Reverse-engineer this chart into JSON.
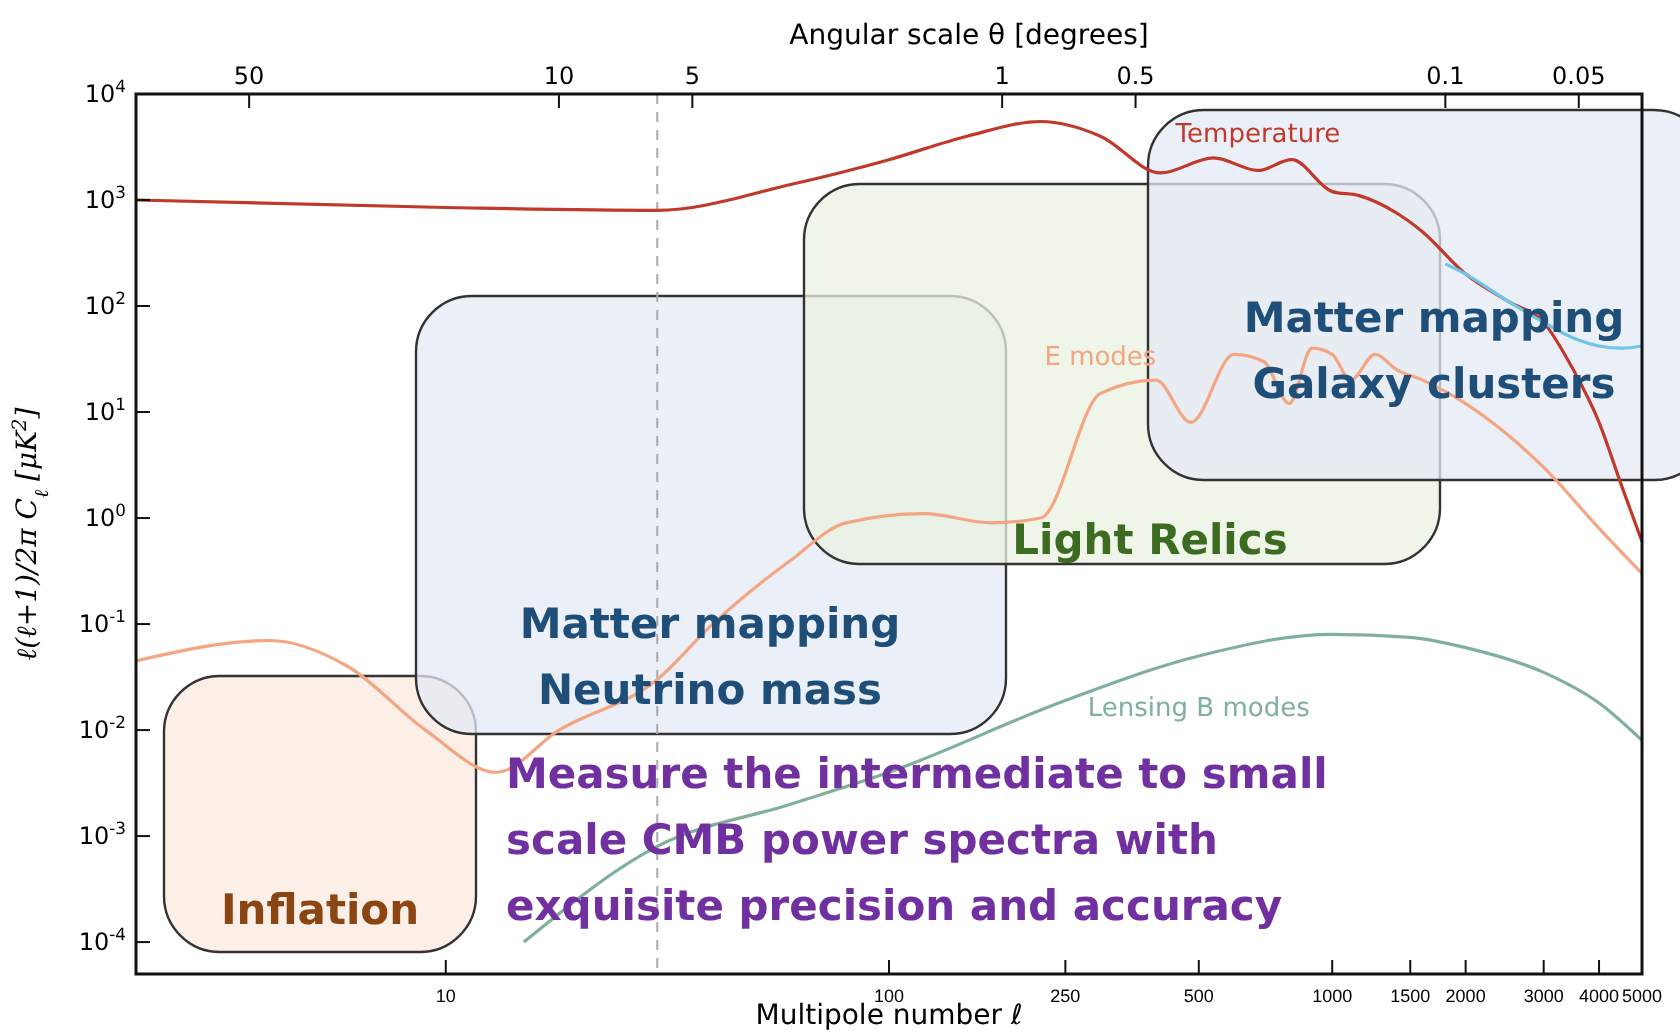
{
  "chart_data": {
    "type": "line",
    "xlabel": "Multipole number ℓ",
    "ylabel": "ℓ(ℓ+1)/2π C$_{ℓ}$ [μK$^{2}$]",
    "x2label": "Angular scale θ [degrees]",
    "xlim": [
      2,
      5000
    ],
    "xticks": [
      10,
      100,
      250,
      500,
      1000,
      1500,
      2000,
      3000,
      4000,
      5000
    ],
    "ylim": [
      5e-05,
      10000
    ],
    "log": "xy",
    "yticks": [
      {
        "value": 0.0001,
        "label": "10$^{-4}$"
      },
      {
        "value": 0.001,
        "label": "10$^{-3}$"
      },
      {
        "value": 0.01,
        "label": "10$^{-2}$"
      },
      {
        "value": 0.1,
        "label": "10$^{-1}$"
      },
      {
        "value": 1,
        "label": "10$^{0}$"
      },
      {
        "value": 10,
        "label": "10$^{1}$"
      },
      {
        "value": 100,
        "label": "10$^{2}$"
      },
      {
        "value": 1000,
        "label": "10$^{3}$"
      },
      {
        "value": 10000,
        "label": "10$^{4}$"
      }
    ],
    "series": [
      {
        "name": "Temperature",
        "color": "#c0392b",
        "x": [
          2,
          10,
          30,
          60,
          100,
          150,
          220,
          300,
          410,
          540,
          680,
          810,
          1000,
          1150,
          1400,
          1600,
          2000,
          2500,
          3000,
          3500,
          4000,
          4500,
          5000
        ],
        "values": [
          1000,
          850,
          800,
          1400,
          2400,
          4000,
          5500,
          4000,
          1800,
          2500,
          1900,
          2400,
          1200,
          1100,
          750,
          500,
          200,
          110,
          70,
          25,
          8,
          2,
          0.6
        ]
      },
      {
        "name": "E modes",
        "color": "#f4a582",
        "x": [
          2,
          4,
          6,
          9,
          13,
          18,
          30,
          40,
          60,
          80,
          120,
          170,
          220,
          300,
          400,
          480,
          600,
          700,
          800,
          900,
          1000,
          1100,
          1250,
          1400,
          1600,
          2000,
          2500,
          3000,
          4000,
          5000
        ],
        "values": [
          0.045,
          0.07,
          0.04,
          0.01,
          0.004,
          0.01,
          0.03,
          0.1,
          0.4,
          0.9,
          1.1,
          0.9,
          1.0,
          15,
          20,
          8,
          35,
          30,
          12,
          40,
          35,
          20,
          35,
          25,
          20,
          12,
          6,
          3,
          0.8,
          0.3
        ]
      },
      {
        "name": "Lensing B modes",
        "color": "#7fb09a",
        "x": [
          15,
          30,
          60,
          100,
          250,
          500,
          1000,
          1500,
          2000,
          3000,
          4000,
          5000
        ],
        "values": [
          0.0001,
          0.0008,
          0.002,
          0.004,
          0.019,
          0.05,
          0.08,
          0.075,
          0.06,
          0.035,
          0.018,
          0.008
        ]
      },
      {
        "color": "#6ec6ea",
        "x": [
          1800,
          2000,
          2500,
          3000,
          3500,
          4000,
          4500,
          5000
        ],
        "values": [
          250,
          200,
          110,
          70,
          50,
          42,
          40,
          42
        ]
      }
    ],
    "ref_lines": [
      {
        "axis": "x",
        "value": 30,
        "color": "#aaaaaa",
        "line_style": "dashed"
      }
    ],
    "annotations": [
      "Inflation",
      "Matter mapping\nNeutrino mass",
      "Light Relics",
      "Matter mapping\nGalaxy clusters",
      "Measure the intermediate to small\nscale CMB power spectra with\nexquisite precision and accuracy",
      "50",
      "10",
      "5",
      "1",
      "0.5",
      "0.1",
      "0.05"
    ]
  }
}
